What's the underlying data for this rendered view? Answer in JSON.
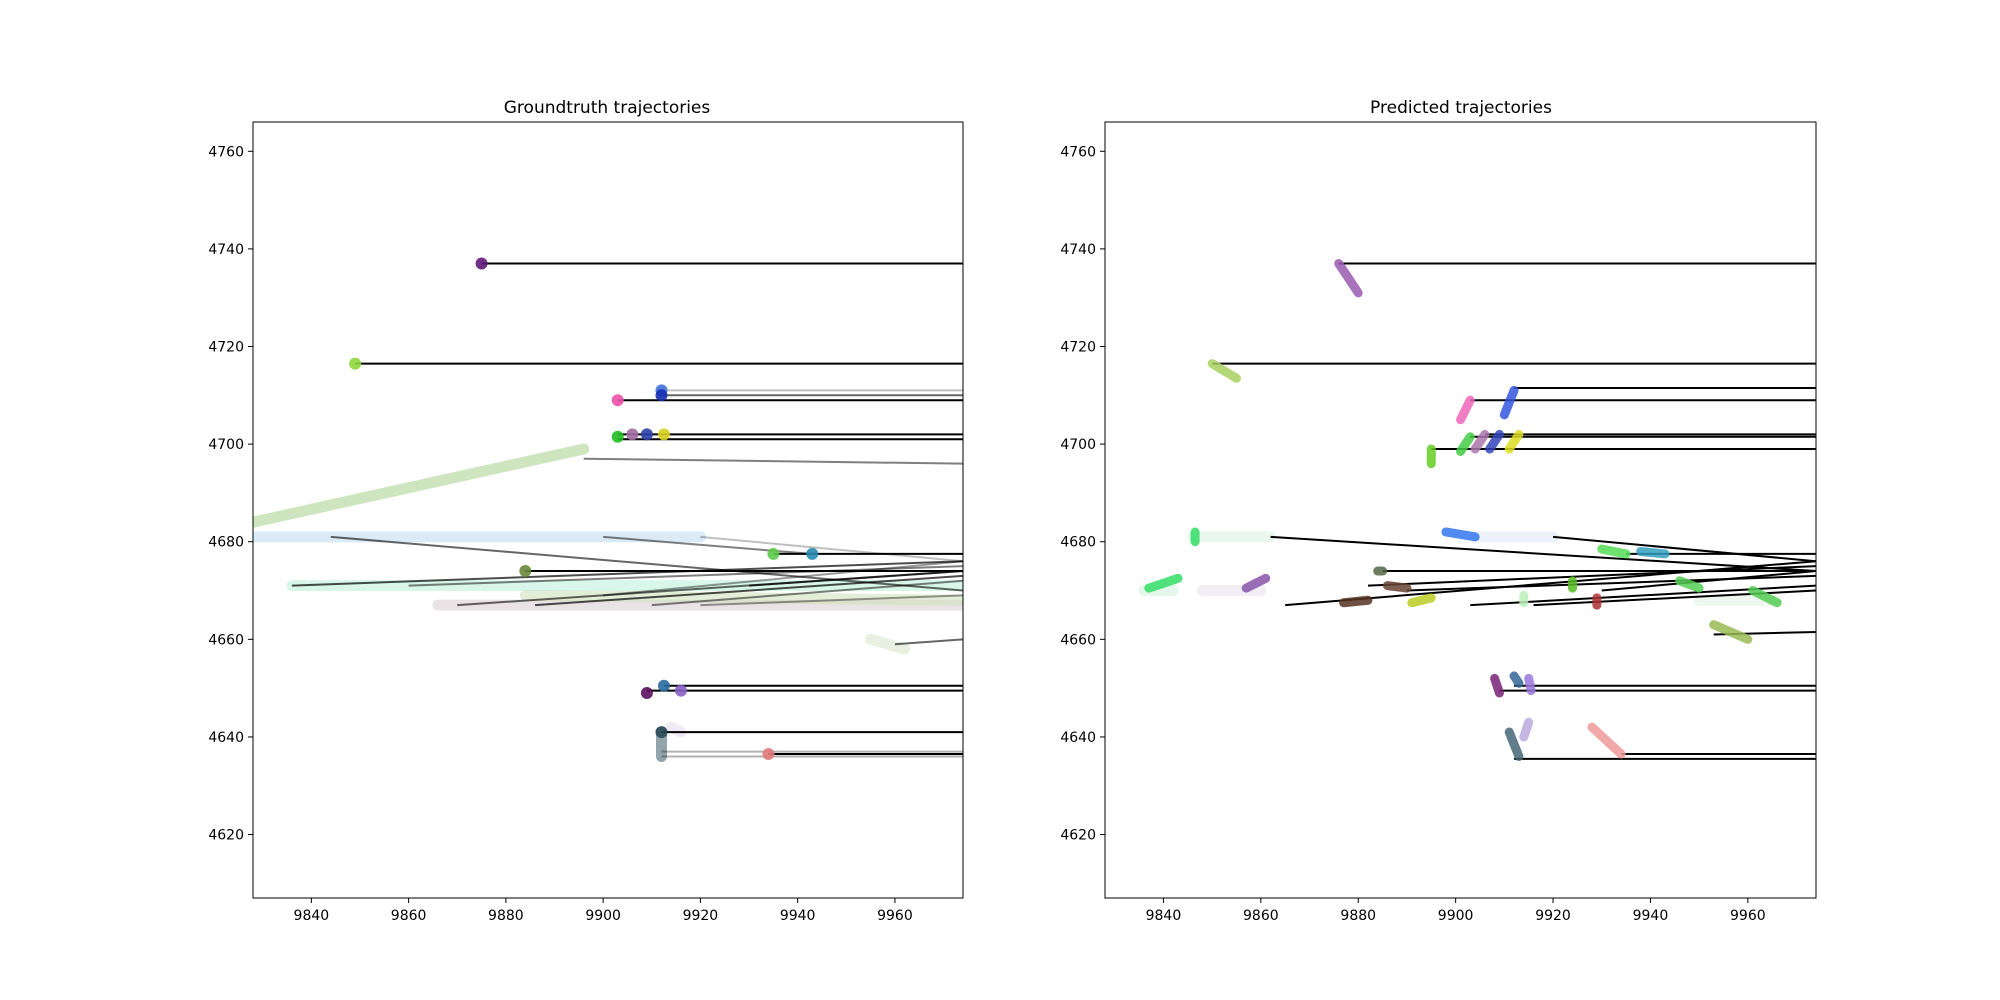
{
  "chart_data": [
    {
      "type": "scatter",
      "title": "Groundtruth trajectories",
      "xlim": [
        9828,
        9974
      ],
      "ylim": [
        4607,
        4766
      ],
      "xticks": [
        9840,
        9860,
        9880,
        9900,
        9920,
        9940,
        9960
      ],
      "yticks": [
        4620,
        4640,
        4660,
        4680,
        4700,
        4720,
        4740,
        4760
      ],
      "grid": false,
      "trails": [
        {
          "color": "#a8d08d",
          "x0": 9828,
          "y0": 4684,
          "x1": 9896,
          "y1": 4699
        },
        {
          "color": "#bcd8f0",
          "x0": 9828,
          "y0": 4681,
          "x1": 9920,
          "y1": 4681
        },
        {
          "color": "#b8eed8",
          "x0": 9836,
          "y0": 4671,
          "x1": 9974,
          "y1": 4671
        },
        {
          "color": "#d8ccd0",
          "x0": 9866,
          "y0": 4667,
          "x1": 9974,
          "y1": 4667
        },
        {
          "color": "#cce0b8",
          "x0": 9884,
          "y0": 4669,
          "x1": 9974,
          "y1": 4668
        },
        {
          "color": "#d6e6c8",
          "x0": 9955,
          "y0": 4660,
          "x1": 9962,
          "y1": 4658
        },
        {
          "color": "#e0d8ee",
          "x0": 9914,
          "y0": 4642,
          "x1": 9916,
          "y1": 4641
        },
        {
          "color": "#3d5a66",
          "x0": 9912,
          "y0": 4636,
          "x1": 9912,
          "y1": 4641
        }
      ],
      "points": [
        {
          "x": 9875,
          "y": 4737,
          "color": "#5e1a78"
        },
        {
          "x": 9849,
          "y": 4716.5,
          "color": "#8fd63a"
        },
        {
          "x": 9903,
          "y": 4709,
          "color": "#ee4fa8"
        },
        {
          "x": 9912,
          "y": 4711,
          "color": "#3f6fd8"
        },
        {
          "x": 9912,
          "y": 4710,
          "color": "#1530b0"
        },
        {
          "x": 9903,
          "y": 4701.5,
          "color": "#22bb22"
        },
        {
          "x": 9906,
          "y": 4702,
          "color": "#a06ca0"
        },
        {
          "x": 9909,
          "y": 4702,
          "color": "#2a3ea8"
        },
        {
          "x": 9912.5,
          "y": 4702,
          "color": "#d8d020"
        },
        {
          "x": 9884,
          "y": 4674,
          "color": "#6a8a3a"
        },
        {
          "x": 9935,
          "y": 4677.5,
          "color": "#5ecb4a"
        },
        {
          "x": 9943,
          "y": 4677.5,
          "color": "#2a8ab0"
        },
        {
          "x": 9912.5,
          "y": 4650.5,
          "color": "#2a6aa0"
        },
        {
          "x": 9909,
          "y": 4649,
          "color": "#5a1060"
        },
        {
          "x": 9916,
          "y": 4649.5,
          "color": "#8860c8"
        },
        {
          "x": 9934,
          "y": 4636.5,
          "color": "#e07a7a"
        },
        {
          "x": 9912,
          "y": 4641,
          "color": "#2a4a55"
        }
      ],
      "segments": [
        {
          "x0": 9875,
          "y0": 4737,
          "x1": 9974,
          "y1": 4737,
          "color": "#000000",
          "opacity": 1
        },
        {
          "x0": 9849,
          "y0": 4716.5,
          "x1": 9974,
          "y1": 4716.5,
          "color": "#000000",
          "opacity": 1
        },
        {
          "x0": 9912,
          "y0": 4711,
          "x1": 9974,
          "y1": 4711,
          "color": "#000000",
          "opacity": 0.25
        },
        {
          "x0": 9912,
          "y0": 4710,
          "x1": 9974,
          "y1": 4710,
          "color": "#000000",
          "opacity": 0.6
        },
        {
          "x0": 9903,
          "y0": 4709,
          "x1": 9974,
          "y1": 4709,
          "color": "#000000",
          "opacity": 1
        },
        {
          "x0": 9903,
          "y0": 4702,
          "x1": 9974,
          "y1": 4702,
          "color": "#000000",
          "opacity": 1
        },
        {
          "x0": 9903,
          "y0": 4701,
          "x1": 9974,
          "y1": 4701,
          "color": "#000000",
          "opacity": 1
        },
        {
          "x0": 9896,
          "y0": 4697,
          "x1": 9974,
          "y1": 4696,
          "color": "#000000",
          "opacity": 0.5
        },
        {
          "x0": 9935,
          "y0": 4677.5,
          "x1": 9974,
          "y1": 4677.5,
          "color": "#000000",
          "opacity": 1
        },
        {
          "x0": 9900,
          "y0": 4681,
          "x1": 9943,
          "y1": 4677.5,
          "color": "#000000",
          "opacity": 0.5
        },
        {
          "x0": 9920,
          "y0": 4681,
          "x1": 9974,
          "y1": 4676,
          "color": "#000000",
          "opacity": 0.25
        },
        {
          "x0": 9844,
          "y0": 4681,
          "x1": 9974,
          "y1": 4670,
          "color": "#000000",
          "opacity": 0.6
        },
        {
          "x0": 9884,
          "y0": 4674,
          "x1": 9974,
          "y1": 4674,
          "color": "#000000",
          "opacity": 1
        },
        {
          "x0": 9836,
          "y0": 4671,
          "x1": 9974,
          "y1": 4676,
          "color": "#000000",
          "opacity": 0.7
        },
        {
          "x0": 9860,
          "y0": 4671,
          "x1": 9974,
          "y1": 4675,
          "color": "#000000",
          "opacity": 0.5
        },
        {
          "x0": 9870,
          "y0": 4667,
          "x1": 9974,
          "y1": 4674,
          "color": "#000000",
          "opacity": 0.6
        },
        {
          "x0": 9886,
          "y0": 4667,
          "x1": 9974,
          "y1": 4673,
          "color": "#000000",
          "opacity": 0.7
        },
        {
          "x0": 9900,
          "y0": 4669,
          "x1": 9974,
          "y1": 4676,
          "color": "#000000",
          "opacity": 0.4
        },
        {
          "x0": 9910,
          "y0": 4667,
          "x1": 9974,
          "y1": 4672,
          "color": "#000000",
          "opacity": 0.5
        },
        {
          "x0": 9930,
          "y0": 4671,
          "x1": 9974,
          "y1": 4674,
          "color": "#000000",
          "opacity": 0.7
        },
        {
          "x0": 9920,
          "y0": 4667,
          "x1": 9974,
          "y1": 4669,
          "color": "#000000",
          "opacity": 0.4
        },
        {
          "x0": 9960,
          "y0": 4659,
          "x1": 9974,
          "y1": 4660,
          "color": "#000000",
          "opacity": 0.6
        },
        {
          "x0": 9912.5,
          "y0": 4650.5,
          "x1": 9974,
          "y1": 4650.5,
          "color": "#000000",
          "opacity": 1
        },
        {
          "x0": 9909,
          "y0": 4649.5,
          "x1": 9974,
          "y1": 4649.5,
          "color": "#000000",
          "opacity": 1
        },
        {
          "x0": 9912,
          "y0": 4641,
          "x1": 9974,
          "y1": 4641,
          "color": "#000000",
          "opacity": 1
        },
        {
          "x0": 9912,
          "y0": 4637,
          "x1": 9974,
          "y1": 4637,
          "color": "#000000",
          "opacity": 0.3
        },
        {
          "x0": 9934,
          "y0": 4636.5,
          "x1": 9974,
          "y1": 4636.5,
          "color": "#000000",
          "opacity": 1
        },
        {
          "x0": 9912,
          "y0": 4636,
          "x1": 9974,
          "y1": 4636,
          "color": "#000000",
          "opacity": 0.3
        }
      ]
    },
    {
      "type": "scatter",
      "title": "Predicted trajectories",
      "xlim": [
        9828,
        9974
      ],
      "ylim": [
        4607,
        4766
      ],
      "xticks": [
        9840,
        9860,
        9880,
        9900,
        9920,
        9940,
        9960
      ],
      "yticks": [
        4620,
        4640,
        4660,
        4680,
        4700,
        4720,
        4740,
        4760
      ],
      "grid": false,
      "trails": [
        {
          "color": "#d8f0e0",
          "x0": 9846,
          "y0": 4681,
          "x1": 9862,
          "y1": 4681
        },
        {
          "color": "#dde6f4",
          "x0": 9904,
          "y0": 4681,
          "x1": 9920,
          "y1": 4681
        },
        {
          "color": "#e6e0ee",
          "x0": 9848,
          "y0": 4670,
          "x1": 9860,
          "y1": 4670
        },
        {
          "color": "#d0f0d8",
          "x0": 9836,
          "y0": 4670,
          "x1": 9842,
          "y1": 4670
        },
        {
          "color": "#e0f0e0",
          "x0": 9950,
          "y0": 4668,
          "x1": 9966,
          "y1": 4668
        }
      ],
      "tracks": [
        {
          "color": "#9a5ab0",
          "x0": 9876,
          "y0": 4737,
          "x1": 9880,
          "y1": 4731
        },
        {
          "color": "#a8d060",
          "x0": 9850,
          "y0": 4716.5,
          "x1": 9855,
          "y1": 4713.5
        },
        {
          "color": "#ee66bb",
          "x0": 9903,
          "y0": 4709,
          "x1": 9901,
          "y1": 4705
        },
        {
          "color": "#3355dd",
          "x0": 9912,
          "y0": 4711,
          "x1": 9910,
          "y1": 4706
        },
        {
          "color": "#66cc22",
          "x0": 9895,
          "y0": 4699,
          "x1": 9895,
          "y1": 4696
        },
        {
          "color": "#44cc44",
          "x0": 9903,
          "y0": 4701.5,
          "x1": 9901,
          "y1": 4698.5
        },
        {
          "color": "#aa77aa",
          "x0": 9906,
          "y0": 4702,
          "x1": 9904,
          "y1": 4699
        },
        {
          "color": "#3344bb",
          "x0": 9909,
          "y0": 4702,
          "x1": 9907,
          "y1": 4699
        },
        {
          "color": "#dddd22",
          "x0": 9913,
          "y0": 4702,
          "x1": 9911,
          "y1": 4699
        },
        {
          "color": "#33dd66",
          "x0": 9846.5,
          "y0": 4682,
          "x1": 9846.5,
          "y1": 4680
        },
        {
          "color": "#3377ee",
          "x0": 9898,
          "y0": 4682,
          "x1": 9904,
          "y1": 4681
        },
        {
          "color": "#55dd55",
          "x0": 9930,
          "y0": 4678.5,
          "x1": 9935,
          "y1": 4677.5
        },
        {
          "color": "#33a0c0",
          "x0": 9938,
          "y0": 4678,
          "x1": 9943,
          "y1": 4677.5
        },
        {
          "color": "#33dd66",
          "x0": 9843,
          "y0": 4672.5,
          "x1": 9837,
          "y1": 4670.5
        },
        {
          "color": "#8855aa",
          "x0": 9861,
          "y0": 4672.5,
          "x1": 9857,
          "y1": 4670.5
        },
        {
          "color": "#556644",
          "x0": 9884,
          "y0": 4674,
          "x1": 9885,
          "y1": 4674
        },
        {
          "color": "#553322",
          "x0": 9877,
          "y0": 4667.5,
          "x1": 9882,
          "y1": 4668
        },
        {
          "color": "#664433",
          "x0": 9886,
          "y0": 4671,
          "x1": 9890,
          "y1": 4670.5
        },
        {
          "color": "#bbcc22",
          "x0": 9891,
          "y0": 4667.5,
          "x1": 9895,
          "y1": 4668.5
        },
        {
          "color": "#55bb22",
          "x0": 9924,
          "y0": 4672,
          "x1": 9924,
          "y1": 4670.5
        },
        {
          "color": "#aa3333",
          "x0": 9929,
          "y0": 4668.5,
          "x1": 9929,
          "y1": 4667
        },
        {
          "color": "#55cc55",
          "x0": 9946,
          "y0": 4672,
          "x1": 9950,
          "y1": 4670.5
        },
        {
          "color": "#55cc55",
          "x0": 9961,
          "y0": 4670,
          "x1": 9966,
          "y1": 4667.5
        },
        {
          "color": "#99bb55",
          "x0": 9953,
          "y0": 4663,
          "x1": 9960,
          "y1": 4660
        },
        {
          "color": "#bbeebb",
          "x0": 9914,
          "y0": 4669,
          "x1": 9914,
          "y1": 4667.5
        },
        {
          "color": "#772277",
          "x0": 9908,
          "y0": 4652,
          "x1": 9909,
          "y1": 4649
        },
        {
          "color": "#336699",
          "x0": 9912,
          "y0": 4652.5,
          "x1": 9913,
          "y1": 4651
        },
        {
          "color": "#9977dd",
          "x0": 9915,
          "y0": 4652,
          "x1": 9915.5,
          "y1": 4649.5
        },
        {
          "color": "#446677",
          "x0": 9911,
          "y0": 4641,
          "x1": 9913,
          "y1": 4636
        },
        {
          "color": "#bbaadd",
          "x0": 9915,
          "y0": 4643,
          "x1": 9914,
          "y1": 4640
        },
        {
          "color": "#ee9999",
          "x0": 9928,
          "y0": 4642,
          "x1": 9934,
          "y1": 4636.5
        }
      ],
      "segments": [
        {
          "x0": 9876,
          "y0": 4737,
          "x1": 9974,
          "y1": 4737
        },
        {
          "x0": 9850,
          "y0": 4716.5,
          "x1": 9974,
          "y1": 4716.5
        },
        {
          "x0": 9912,
          "y0": 4711.5,
          "x1": 9974,
          "y1": 4711.5
        },
        {
          "x0": 9903,
          "y0": 4709,
          "x1": 9974,
          "y1": 4709
        },
        {
          "x0": 9906,
          "y0": 4702,
          "x1": 9974,
          "y1": 4702
        },
        {
          "x0": 9903,
          "y0": 4701.5,
          "x1": 9974,
          "y1": 4701.5
        },
        {
          "x0": 9895,
          "y0": 4699,
          "x1": 9974,
          "y1": 4699
        },
        {
          "x0": 9862,
          "y0": 4681,
          "x1": 9974,
          "y1": 4674
        },
        {
          "x0": 9920,
          "y0": 4681,
          "x1": 9974,
          "y1": 4676
        },
        {
          "x0": 9935,
          "y0": 4677.5,
          "x1": 9974,
          "y1": 4677.5
        },
        {
          "x0": 9885,
          "y0": 4674,
          "x1": 9974,
          "y1": 4674
        },
        {
          "x0": 9882,
          "y0": 4671,
          "x1": 9974,
          "y1": 4675
        },
        {
          "x0": 9865,
          "y0": 4667,
          "x1": 9974,
          "y1": 4676
        },
        {
          "x0": 9890,
          "y0": 4670,
          "x1": 9974,
          "y1": 4673
        },
        {
          "x0": 9903,
          "y0": 4667,
          "x1": 9974,
          "y1": 4671
        },
        {
          "x0": 9916,
          "y0": 4667,
          "x1": 9974,
          "y1": 4670
        },
        {
          "x0": 9930,
          "y0": 4670,
          "x1": 9974,
          "y1": 4674
        },
        {
          "x0": 9953,
          "y0": 4661,
          "x1": 9974,
          "y1": 4661.5
        },
        {
          "x0": 9912,
          "y0": 4650.5,
          "x1": 9974,
          "y1": 4650.5
        },
        {
          "x0": 9909,
          "y0": 4649.5,
          "x1": 9974,
          "y1": 4649.5
        },
        {
          "x0": 9934,
          "y0": 4636.5,
          "x1": 9974,
          "y1": 4636.5
        },
        {
          "x0": 9912,
          "y0": 4635.5,
          "x1": 9974,
          "y1": 4635.5
        }
      ]
    }
  ]
}
